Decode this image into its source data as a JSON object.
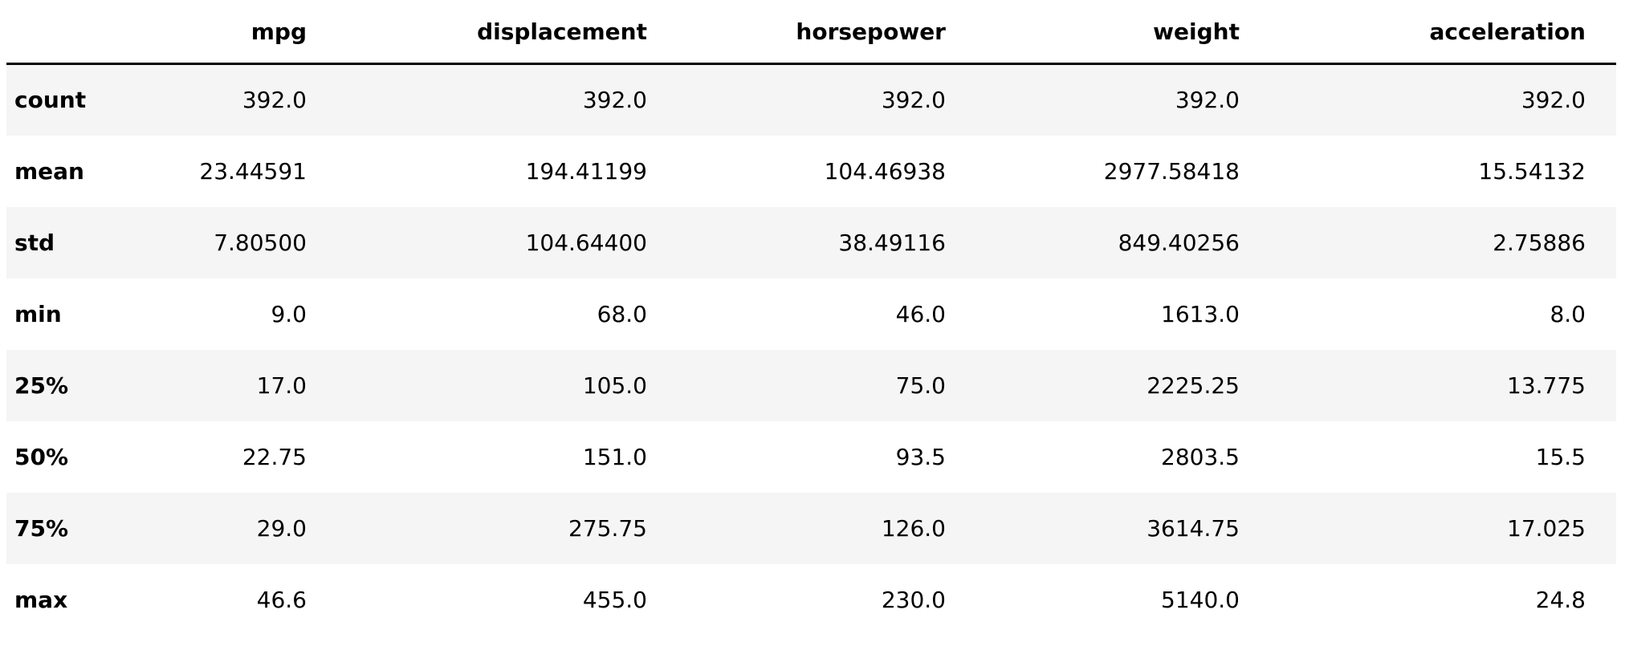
{
  "table": {
    "columns": [
      "mpg",
      "displacement",
      "horsepower",
      "weight",
      "acceleration"
    ],
    "rows": [
      {
        "label": "count",
        "values": [
          "392.0",
          "392.0",
          "392.0",
          "392.0",
          "392.0"
        ]
      },
      {
        "label": "mean",
        "values": [
          "23.44591",
          "194.41199",
          "104.46938",
          "2977.58418",
          "15.54132"
        ]
      },
      {
        "label": "std",
        "values": [
          "7.80500",
          "104.64400",
          "38.49116",
          "849.40256",
          "2.75886"
        ]
      },
      {
        "label": "min",
        "values": [
          "9.0",
          "68.0",
          "46.0",
          "1613.0",
          "8.0"
        ]
      },
      {
        "label": "25%",
        "values": [
          "17.0",
          "105.0",
          "75.0",
          "2225.25",
          "13.775"
        ]
      },
      {
        "label": "50%",
        "values": [
          "22.75",
          "151.0",
          "93.5",
          "2803.5",
          "15.5"
        ]
      },
      {
        "label": "75%",
        "values": [
          "29.0",
          "275.75",
          "126.0",
          "3614.75",
          "17.025"
        ]
      },
      {
        "label": "max",
        "values": [
          "46.6",
          "455.0",
          "230.0",
          "5140.0",
          "24.8"
        ]
      }
    ]
  }
}
